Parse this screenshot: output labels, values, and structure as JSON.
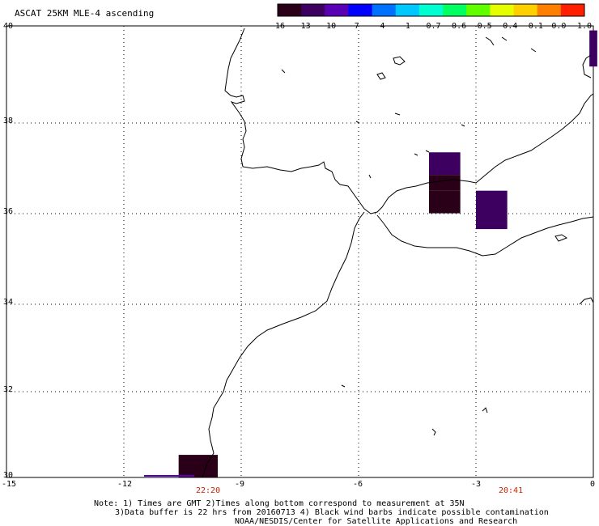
{
  "title": "ASCAT 25KM MLE-4 ascending",
  "colorbar": {
    "labels": [
      "-16",
      "-13",
      "-10",
      "-7",
      "-4",
      "-1",
      "-0.7",
      "-0.6",
      "-0.5",
      "-0.4",
      "-0.1",
      "0.0",
      "1.0"
    ],
    "colors": [
      "#2a0018",
      "#3d0060",
      "#5a00b4",
      "#0000ff",
      "#0070ff",
      "#00c8ff",
      "#00ffd0",
      "#00ff60",
      "#60ff00",
      "#e6ff00",
      "#ffd000",
      "#ff8000",
      "#ff2000"
    ]
  },
  "axes": {
    "lat_labels": [
      "40",
      "38",
      "36",
      "34",
      "32",
      "30"
    ],
    "lon_labels": [
      "-15",
      "-12",
      "-9",
      "-6",
      "-3",
      "0"
    ]
  },
  "times": [
    "22:20",
    "20:41"
  ],
  "note": {
    "line1": "Note: 1) Times are GMT 2)Times along bottom correspond to measurement at 35N",
    "line2": "3)Data buffer is 22 hrs from 20160713 4) Black wind barbs indicate possible contamination",
    "line3": "NOAA/NESDIS/Center for Satellite Applications and Research"
  },
  "data_cells": [
    {
      "lon_min": -4.2,
      "lon_max": -3.4,
      "lat_min": 36.7,
      "lat_max": 37.2,
      "value_band": "-13"
    },
    {
      "lon_min": -4.2,
      "lon_max": -3.4,
      "lat_min": 36.35,
      "lat_max": 36.7,
      "value_band": "-16"
    },
    {
      "lon_min": -4.2,
      "lon_max": -3.4,
      "lat_min": 35.85,
      "lat_max": 36.35,
      "value_band": "-16"
    },
    {
      "lon_min": -3.0,
      "lon_max": -2.2,
      "lat_min": 35.5,
      "lat_max": 36.35,
      "value_band": "-13"
    },
    {
      "lon_min": -0.1,
      "lon_max": 0.1,
      "lat_min": 39.1,
      "lat_max": 39.9,
      "value_band": "-13"
    },
    {
      "lon_min": -10.6,
      "lon_max": -9.6,
      "lat_min": 30.0,
      "lat_max": 30.5,
      "value_band": "-16"
    }
  ]
}
